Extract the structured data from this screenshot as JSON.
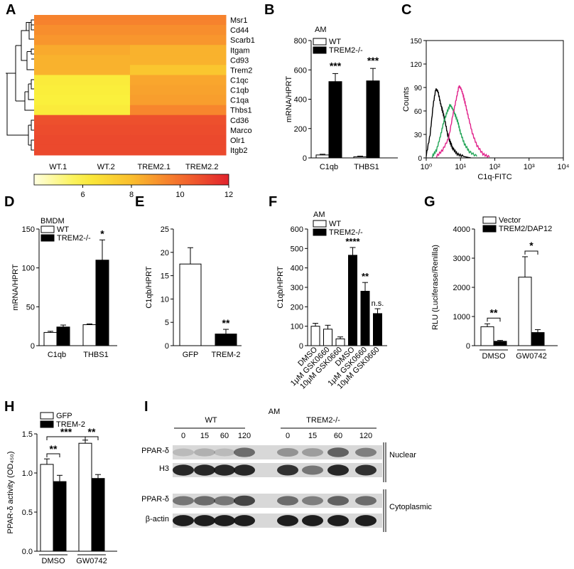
{
  "panels": {
    "A": "A",
    "B": "B",
    "C": "C",
    "D": "D",
    "E": "E",
    "F": "F",
    "G": "G",
    "H": "H",
    "I": "I"
  },
  "chart_data": [
    {
      "panel": "A",
      "type": "heatmap",
      "rows": [
        "Msr1",
        "Cd44",
        "Scarb1",
        "Itgam",
        "Cd93",
        "Trem2",
        "C1qc",
        "C1qb",
        "C1qa",
        "Thbs1",
        "Cd36",
        "Marco",
        "Olr1",
        "Itgb2"
      ],
      "columns": [
        "WT.1",
        "WT.2",
        "TREM2.1",
        "TREM2.2"
      ],
      "values": [
        [
          9.5,
          9.5,
          9.5,
          9.5
        ],
        [
          9.2,
          9.2,
          9.2,
          9.2
        ],
        [
          9.0,
          9.0,
          9.0,
          9.0
        ],
        [
          8.5,
          8.5,
          8.3,
          8.3
        ],
        [
          8.3,
          8.3,
          8.3,
          8.3
        ],
        [
          8.3,
          8.3,
          7.7,
          7.7
        ],
        [
          6.2,
          6.2,
          8.6,
          8.6
        ],
        [
          6.1,
          6.1,
          8.7,
          8.7
        ],
        [
          6.0,
          6.0,
          8.8,
          8.8
        ],
        [
          6.2,
          6.2,
          9.4,
          9.4
        ],
        [
          10.8,
          10.8,
          10.8,
          10.8
        ],
        [
          10.9,
          10.9,
          10.9,
          10.9
        ],
        [
          11.0,
          11.0,
          11.0,
          11.0
        ],
        [
          11.0,
          11.0,
          11.0,
          11.0
        ]
      ],
      "colorbar_ticks": [
        "6",
        "8",
        "10",
        "12"
      ],
      "colorbar_range": [
        4,
        12
      ]
    },
    {
      "panel": "B",
      "type": "bar",
      "group_label": "AM",
      "categories": [
        "C1qb",
        "THBS1"
      ],
      "series": [
        {
          "name": "WT",
          "values": [
            20,
            8
          ],
          "errors": [
            5,
            4
          ],
          "color": "#ffffff"
        },
        {
          "name": "TREM2-/-",
          "values": [
            520,
            525
          ],
          "errors": [
            55,
            85
          ],
          "color": "#000000"
        }
      ],
      "ylabel": "mRNA/HPRT",
      "ylim": [
        0,
        800
      ],
      "yticks": [
        "0",
        "200",
        "400",
        "600",
        "800"
      ],
      "significance": [
        "***",
        "***"
      ]
    },
    {
      "panel": "C",
      "type": "line",
      "xlabel": "C1q-FITC",
      "ylabel": "Counts",
      "xscale": "log",
      "xlim": [
        1,
        10000
      ],
      "ylim": [
        0,
        150
      ],
      "xticks": [
        "10⁰",
        "10¹",
        "10²",
        "10³",
        "10⁴"
      ],
      "yticks": [
        "0",
        "30",
        "60",
        "90",
        "120",
        "150"
      ],
      "series": [
        {
          "color": "#000000",
          "x": [
            1.0,
            1.3,
            1.6,
            1.9,
            2.2,
            2.6,
            3.0,
            3.5,
            4.2,
            5.0,
            6.0,
            8.0,
            12,
            20
          ],
          "y": [
            3,
            30,
            68,
            88,
            85,
            70,
            60,
            48,
            30,
            20,
            12,
            5,
            2,
            0
          ]
        },
        {
          "color": "#22a557",
          "x": [
            1.5,
            2.0,
            2.6,
            3.2,
            4.0,
            5.0,
            6.0,
            7.0,
            8.5,
            10,
            13,
            18,
            30
          ],
          "y": [
            2,
            10,
            28,
            45,
            58,
            68,
            62,
            55,
            45,
            32,
            18,
            8,
            2
          ]
        },
        {
          "color": "#e0218a",
          "x": [
            2.0,
            3.0,
            4.5,
            6.0,
            7.5,
            9.0,
            10.5,
            12,
            14,
            17,
            22,
            30,
            45,
            70
          ],
          "y": [
            2,
            10,
            25,
            55,
            75,
            92,
            88,
            80,
            68,
            52,
            32,
            16,
            5,
            1
          ]
        }
      ]
    },
    {
      "panel": "D",
      "type": "bar",
      "group_label": "BMDM",
      "categories": [
        "C1qb",
        "THBS1"
      ],
      "series": [
        {
          "name": "WT",
          "values": [
            17,
            27
          ],
          "errors": [
            1.5,
            1
          ],
          "color": "#ffffff"
        },
        {
          "name": "TREM2-/-",
          "values": [
            24,
            110
          ],
          "errors": [
            2.5,
            26
          ],
          "color": "#000000"
        }
      ],
      "ylabel": "mRNA/HPRT",
      "ylim": [
        0,
        150
      ],
      "yticks": [
        "0",
        "50",
        "100",
        "150"
      ],
      "significance": [
        "",
        "*"
      ]
    },
    {
      "panel": "E",
      "type": "bar",
      "categories": [
        "GFP",
        "TREM-2"
      ],
      "series": [
        {
          "values": [
            17.5,
            2.5
          ],
          "errors": [
            3.5,
            1
          ],
          "colors": [
            "#ffffff",
            "#000000"
          ]
        }
      ],
      "ylabel": "C1qb/HPRT",
      "ylim": [
        0,
        25
      ],
      "yticks": [
        "0",
        "5",
        "10",
        "15",
        "20",
        "25"
      ],
      "significance": [
        "",
        "**"
      ]
    },
    {
      "panel": "F",
      "type": "bar",
      "group_label": "AM",
      "legend": [
        "WT",
        "TREM2-/-"
      ],
      "categories": [
        "DMSO",
        "1μM GSK0660",
        "10μM GSK0660",
        "DMSO",
        "1μM GSK0660",
        "10μM GSK0660"
      ],
      "values": [
        100,
        85,
        35,
        465,
        280,
        165
      ],
      "errors": [
        15,
        20,
        10,
        40,
        45,
        25
      ],
      "group": [
        "WT",
        "WT",
        "WT",
        "TREM2-/-",
        "TREM2-/-",
        "TREM2-/-"
      ],
      "ylabel": "C1qb/HPRT",
      "ylim": [
        0,
        600
      ],
      "yticks": [
        "0",
        "100",
        "200",
        "300",
        "400",
        "500",
        "600"
      ],
      "significance": [
        "",
        "",
        "",
        "****",
        "**",
        "n.s."
      ]
    },
    {
      "panel": "G",
      "type": "bar",
      "categories": [
        "DMSO",
        "GW0742"
      ],
      "series": [
        {
          "name": "Vector",
          "values": [
            650,
            2350
          ],
          "errors": [
            100,
            700
          ],
          "color": "#ffffff"
        },
        {
          "name": "TREM2/DAP12",
          "values": [
            150,
            450
          ],
          "errors": [
            30,
            100
          ],
          "color": "#000000"
        }
      ],
      "ylabel": "RLU (Luciferase/Renilla)",
      "ylim": [
        0,
        4000
      ],
      "yticks": [
        "0",
        "1000",
        "2000",
        "3000",
        "4000"
      ],
      "significance": [
        "**",
        "*"
      ]
    },
    {
      "panel": "H",
      "type": "bar",
      "categories": [
        "DMSO",
        "GW0742"
      ],
      "series": [
        {
          "name": "GFP",
          "values": [
            1.11,
            1.38
          ],
          "errors": [
            0.07,
            0.04
          ],
          "color": "#ffffff"
        },
        {
          "name": "TREM-2",
          "values": [
            0.89,
            0.93
          ],
          "errors": [
            0.08,
            0.05
          ],
          "color": "#000000"
        }
      ],
      "ylabel": "PPAR-δ activity (OD₄₅₀)",
      "ylim": [
        0.0,
        1.5
      ],
      "yticks": [
        "0.0",
        "0.5",
        "1.0",
        "1.5"
      ],
      "significance": [
        "**",
        "***",
        "**"
      ]
    }
  ],
  "blot": {
    "panel": "I",
    "title": "AM",
    "groups": [
      "WT",
      "TREM2-/-"
    ],
    "timepoints": [
      "0",
      "15",
      "60",
      "120",
      "0",
      "15",
      "60",
      "120"
    ],
    "rows": [
      "PPAR-δ",
      "H3",
      "PPAR-δ",
      "β-actin"
    ],
    "fractions": [
      "Nuclear",
      "Cytoplasmic"
    ],
    "intensity": {
      "ppar_nuclear": [
        0.15,
        0.2,
        0.15,
        0.55,
        0.35,
        0.3,
        0.6,
        0.45
      ],
      "h3": [
        0.9,
        0.9,
        0.9,
        0.9,
        0.85,
        0.5,
        0.9,
        0.85
      ],
      "ppar_cyto": [
        0.5,
        0.55,
        0.5,
        0.75,
        0.55,
        0.45,
        0.6,
        0.55
      ],
      "actin": [
        0.95,
        0.95,
        0.95,
        0.95,
        0.95,
        0.95,
        0.95,
        0.95
      ]
    }
  }
}
